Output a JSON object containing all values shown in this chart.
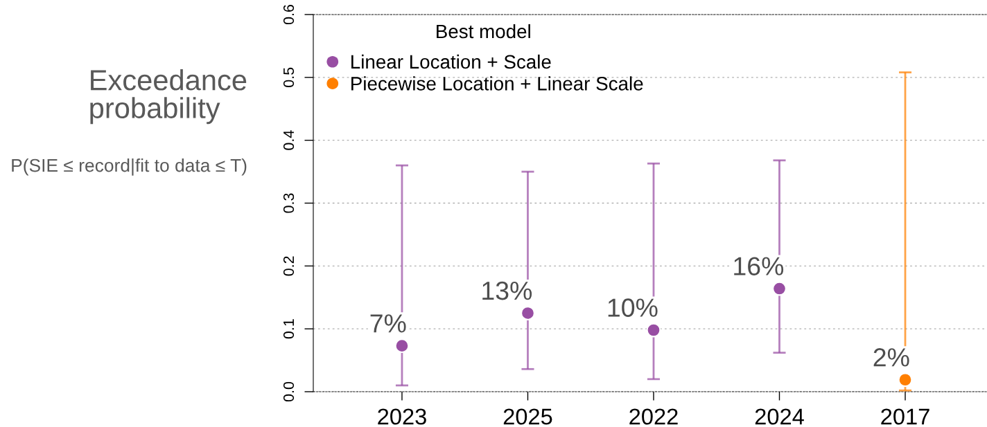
{
  "chart_data": {
    "type": "scatter",
    "title": "Exceedance probability",
    "subtitle": "P(SIE ≤ record|fit to data ≤ T)",
    "legend_title": "Best model",
    "categories": [
      "2023",
      "2025",
      "2022",
      "2024",
      "2017"
    ],
    "series": [
      {
        "name": "Linear Location + Scale",
        "color": "#984ea3",
        "values": [
          0.073,
          0.125,
          0.098,
          0.164,
          null
        ],
        "errors": [
          [
            0.01,
            0.36
          ],
          [
            0.036,
            0.35
          ],
          [
            0.02,
            0.363
          ],
          [
            0.062,
            0.368
          ],
          null
        ],
        "value_labels": [
          "7%",
          "13%",
          "10%",
          "16%",
          null
        ]
      },
      {
        "name": "Piecewise Location + Linear Scale",
        "color": "#ff7f00",
        "values": [
          null,
          null,
          null,
          null,
          0.019
        ],
        "errors": [
          null,
          null,
          null,
          null,
          [
            0.002,
            0.508
          ]
        ],
        "value_labels": [
          null,
          null,
          null,
          null,
          "2%"
        ]
      }
    ],
    "ylim": [
      0,
      0.6
    ],
    "yticks": [
      {
        "value": 0,
        "label": "0.0"
      },
      0.1,
      0.2,
      0.3,
      0.4,
      0.5,
      0.6
    ],
    "grid": "y",
    "legend": "top left",
    "marker": "circle"
  }
}
